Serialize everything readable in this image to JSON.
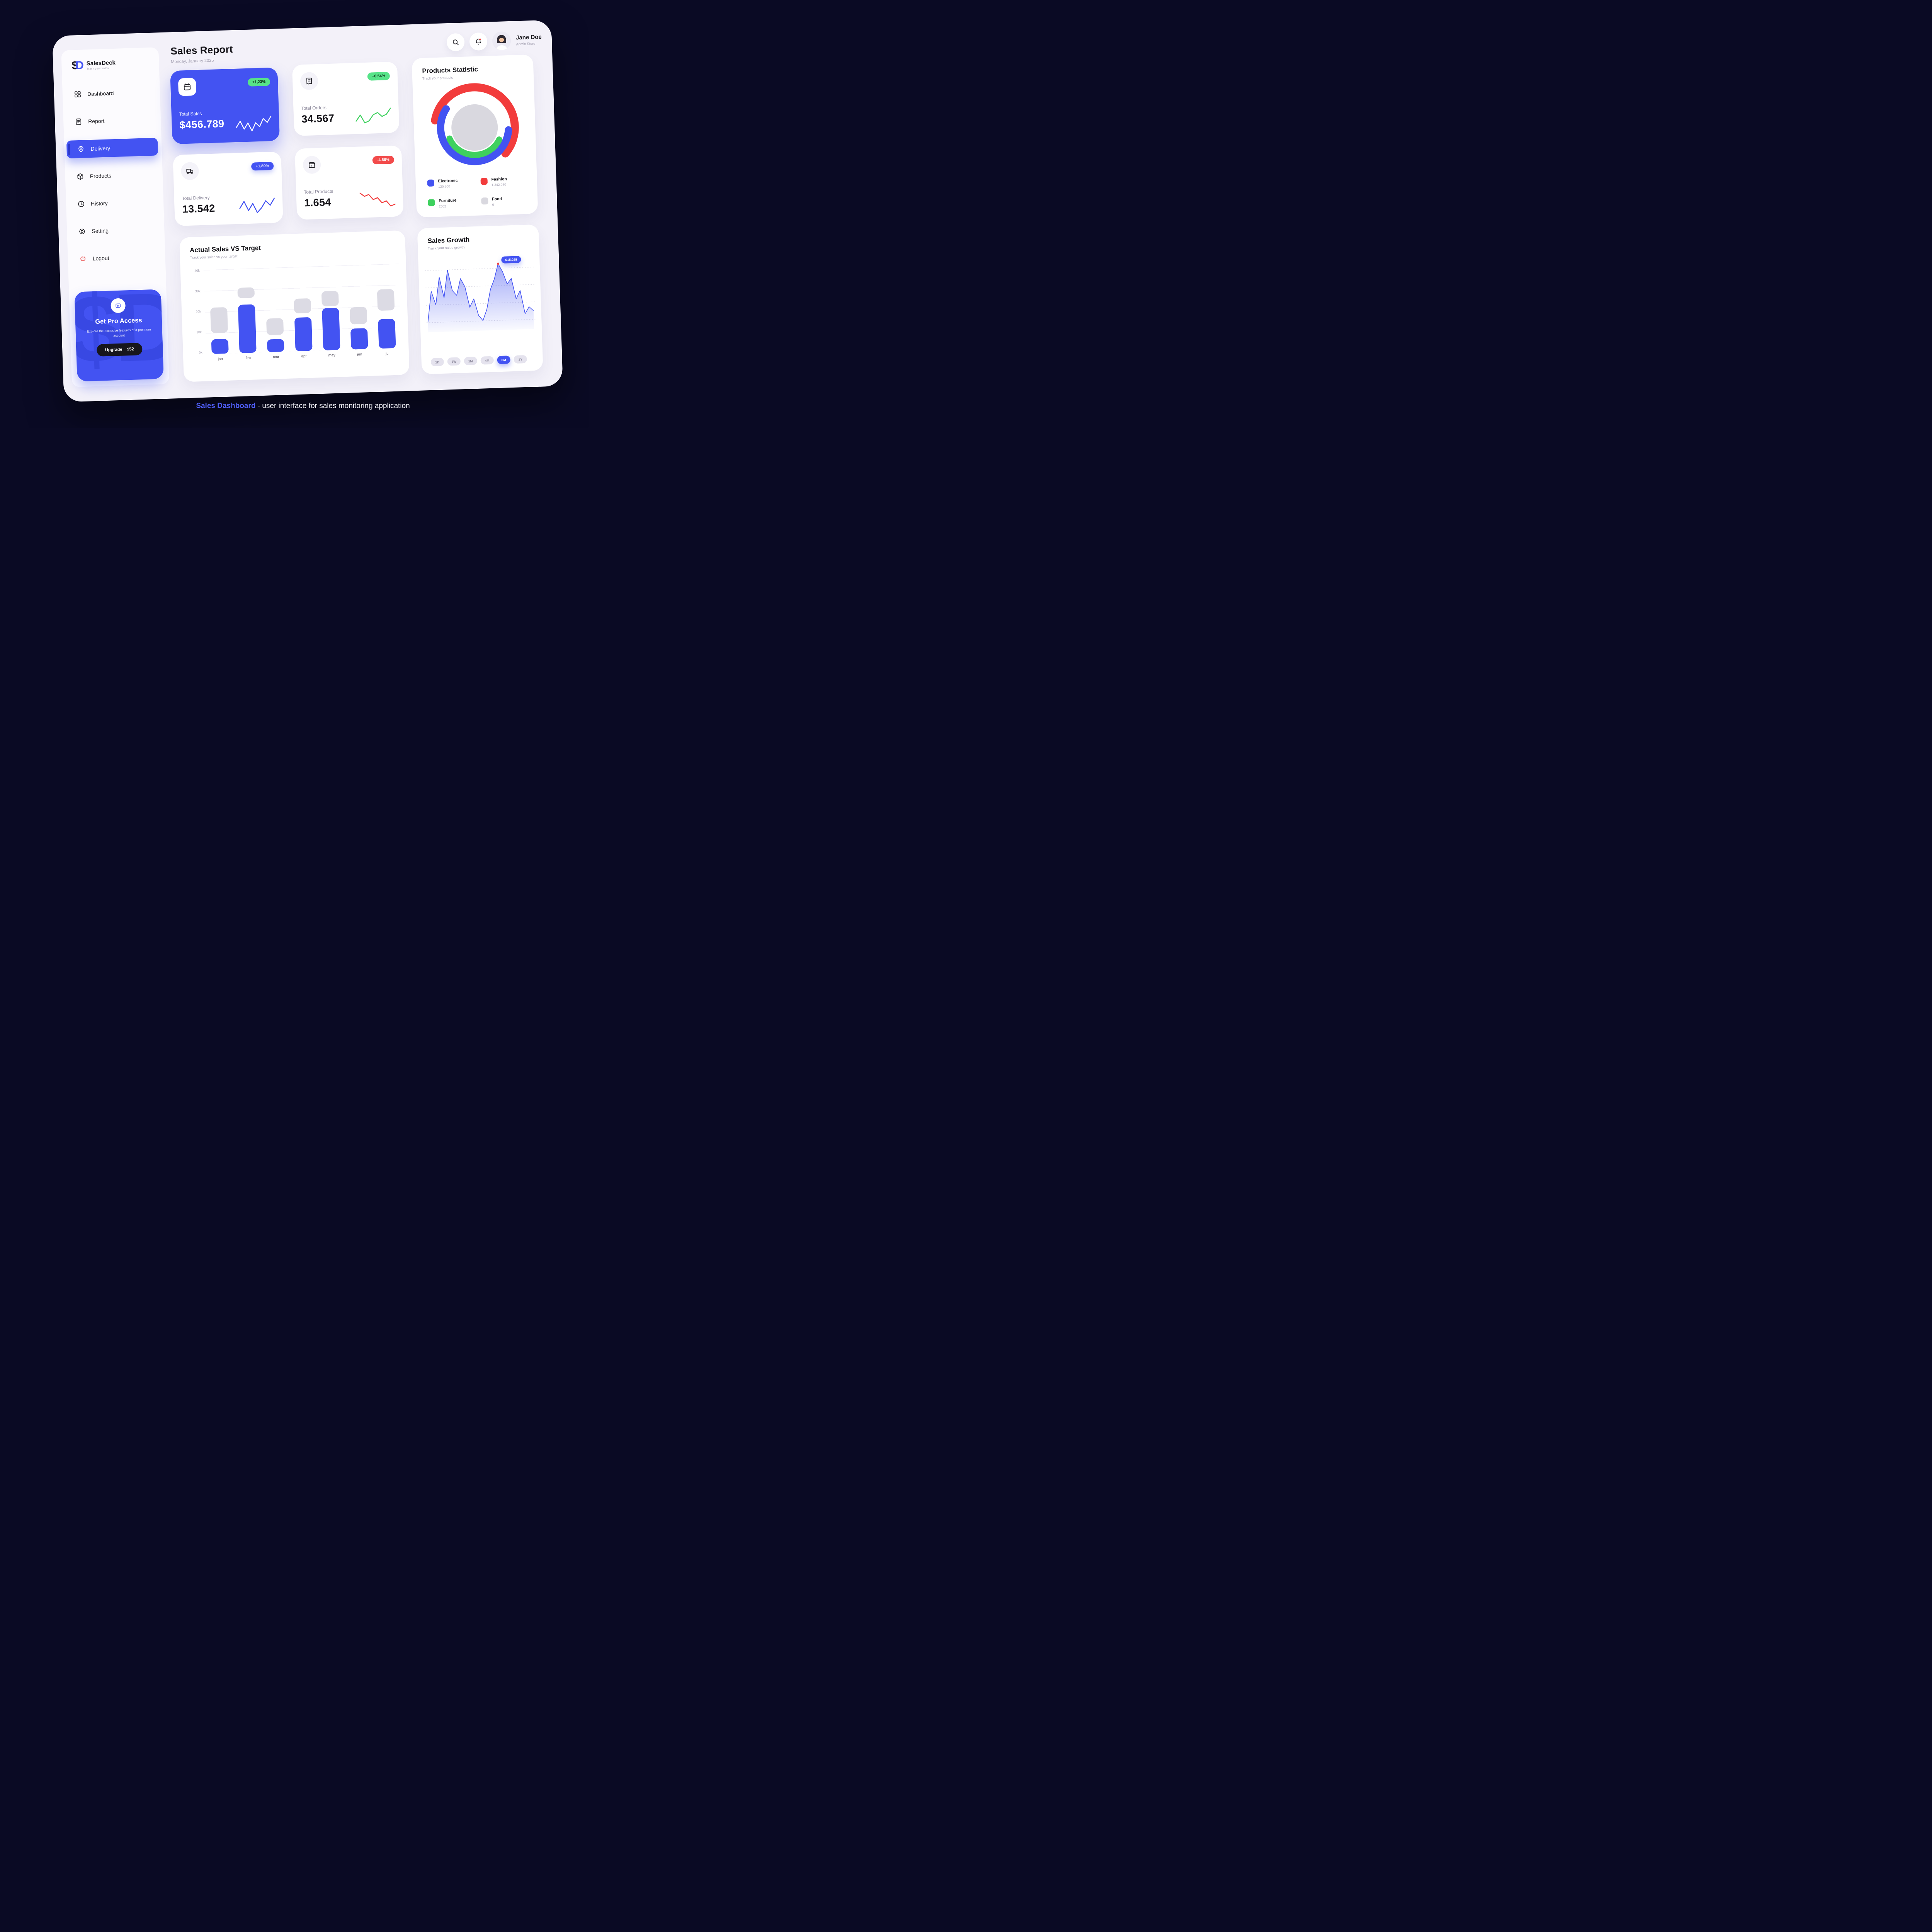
{
  "colors": {
    "accent_blue": "#4353f2",
    "green": "#57e389",
    "red": "#f24b4b",
    "gray_bar": "#dcdbe4",
    "dark": "#17161c"
  },
  "caption": {
    "highlight": "Sales Dashboard",
    "rest": " - user interface for sales monitoring application"
  },
  "sidebar": {
    "logo": {
      "mark_s": "$",
      "mark_d": "D",
      "name": "SalesDeck",
      "tagline": "Track your sales"
    },
    "items": [
      {
        "label": "Dashboard"
      },
      {
        "label": "Report"
      },
      {
        "label": "Delivery"
      },
      {
        "label": "Products"
      },
      {
        "label": "History"
      },
      {
        "label": "Setting"
      },
      {
        "label": "Logout"
      }
    ],
    "promo": {
      "title": "Get Pro Access",
      "description": "Explore the exclusive features of a premium account",
      "button_label": "Upgrade",
      "button_price": "$52",
      "watermark": "$D"
    }
  },
  "header": {
    "title": "Sales Report",
    "date": "Monday, January 2025",
    "user": {
      "name": "Jane Doe",
      "role": "Admin Store"
    }
  },
  "stats": [
    {
      "label": "Total Sales",
      "value": "$456.789",
      "badge": "+1,23%",
      "badge_style": "green",
      "spark": [
        4,
        7,
        3,
        6,
        2,
        6,
        4,
        8,
        6,
        9
      ],
      "spark_color": "#ffffff"
    },
    {
      "label": "Total Orders",
      "value": "34.567",
      "badge": "+0,54%",
      "badge_style": "green",
      "spark": [
        3,
        6,
        2,
        3,
        6,
        7,
        5,
        6,
        9
      ],
      "spark_color": "#3ed15e"
    },
    {
      "label": "Total Delivery",
      "value": "13.542",
      "badge": "+1,89%",
      "badge_style": "blue",
      "spark": [
        5,
        8,
        4,
        7,
        3,
        5,
        8,
        6,
        9
      ],
      "spark_color": "#4353f2"
    },
    {
      "label": "Total Products",
      "value": "1.654",
      "badge": "-4.56%",
      "badge_style": "red",
      "spark": [
        9,
        7,
        8,
        5,
        6,
        3,
        4,
        1,
        2
      ],
      "spark_color": "#f23c3c"
    }
  ],
  "products_statistic": {
    "title": "Products Statistic",
    "subtitle": "Track your products",
    "legend": [
      {
        "name": "Electronic",
        "value": "120.500",
        "color": "#4353f2"
      },
      {
        "name": "Fashion",
        "value": "1.342.050",
        "color": "#f23c3c"
      },
      {
        "name": "Furniture",
        "value": "2002",
        "color": "#3ed15e"
      },
      {
        "name": "Food",
        "value": "0",
        "color": "#d9d8df"
      }
    ]
  },
  "chart_data": [
    {
      "type": "bar",
      "title": "Actual Sales VS Target",
      "subtitle": "Track your sales vs your target",
      "categories": [
        "jan",
        "feb",
        "mar",
        "apr",
        "may",
        "jun",
        "jul"
      ],
      "yticks": [
        "40k",
        "30k",
        "20k",
        "10k",
        "0k"
      ],
      "ylim": [
        0,
        40
      ],
      "series": [
        {
          "name": "actual_k",
          "values": [
            7,
            23,
            6,
            16,
            20,
            10,
            14
          ]
        },
        {
          "name": "target_range_k",
          "ranges": [
            [
              10,
              22
            ],
            [
              26,
              31
            ],
            [
              8,
              16
            ],
            [
              18,
              25
            ],
            [
              21,
              28
            ],
            [
              12,
              20
            ],
            [
              18,
              28
            ]
          ]
        }
      ],
      "legend_position": "none",
      "grid": "horizontal"
    },
    {
      "type": "area",
      "title": "Sales Growth",
      "subtitle": "Track your sales growth",
      "values": [
        10,
        55,
        35,
        75,
        45,
        85,
        55,
        48,
        72,
        60,
        30,
        42,
        18,
        10,
        26,
        55,
        70,
        92,
        80,
        62,
        70,
        40,
        52,
        18,
        28,
        22
      ],
      "tooltip": {
        "label": "$15.025",
        "index": 17
      },
      "buttons": [
        "1D",
        "1W",
        "1M",
        "4M",
        "8M",
        "1Y"
      ],
      "active_button": "8M",
      "grid": "dashed-horizontal"
    },
    {
      "type": "donut",
      "title": "Products Statistic",
      "center_color": "#d9d8df",
      "segments": [
        {
          "name": "Fashion",
          "value": 1342050,
          "color": "#f23c3c",
          "radius": 104,
          "width": 21,
          "from": -78,
          "to": 132
        },
        {
          "name": "Electronic",
          "value": 120500,
          "color": "#4353f2",
          "radius": 88,
          "width": 19,
          "from": 96,
          "to": 305
        },
        {
          "name": "Furniture",
          "value": 2002,
          "color": "#3ed15e",
          "radius": 71,
          "width": 16,
          "from": 118,
          "to": 248
        },
        {
          "name": "Food",
          "value": 0,
          "color": "#d9d8df",
          "radius": 0,
          "width": 0,
          "from": 0,
          "to": 0
        }
      ]
    }
  ]
}
